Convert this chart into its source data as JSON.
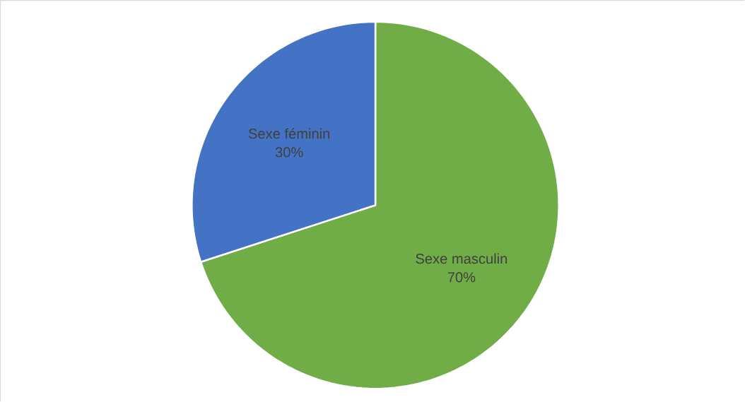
{
  "chart_data": {
    "type": "pie",
    "categories": [
      "Sexe masculin",
      "Sexe féminin"
    ],
    "values": [
      70,
      30
    ],
    "colors": [
      "#70ad47",
      "#4472c4"
    ],
    "value_labels": [
      "70%",
      "30%"
    ]
  }
}
